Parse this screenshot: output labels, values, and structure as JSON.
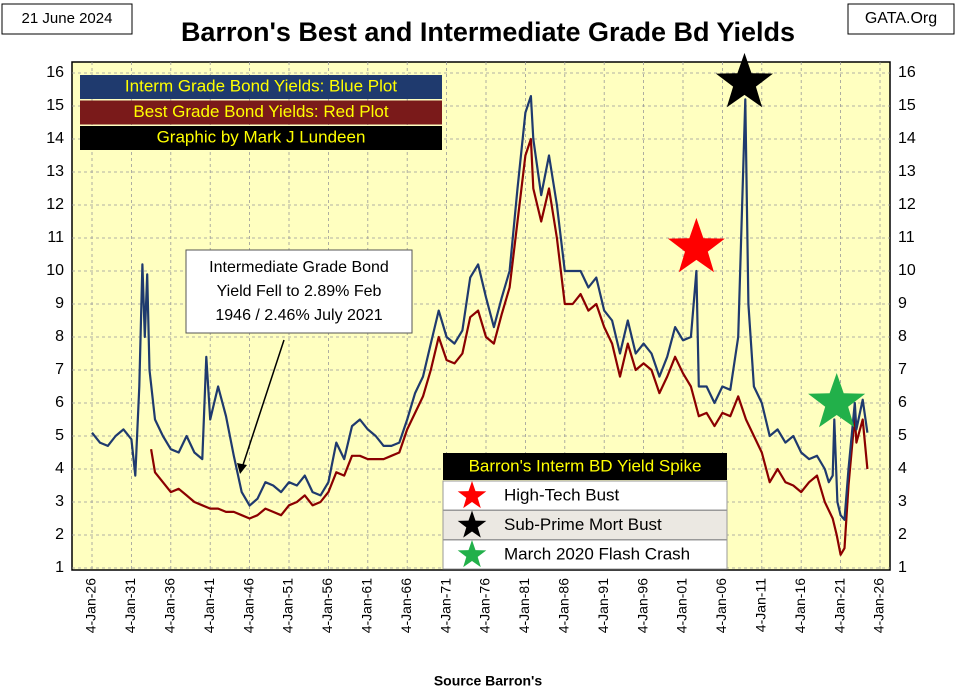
{
  "date_label": "21 June 2024",
  "site_label": "GATA.Org",
  "chart_data": {
    "type": "line",
    "title": "Barron's Best and Intermediate Grade Bd Yields",
    "credit": "Graphic by Mark J Lundeen",
    "source": "Source Barron's",
    "xlim": [
      1926,
      2026
    ],
    "xticks": [
      {
        "value": 1926,
        "label": "4-Jan-26"
      },
      {
        "value": 1931,
        "label": "4-Jan-31"
      },
      {
        "value": 1936,
        "label": "4-Jan-36"
      },
      {
        "value": 1941,
        "label": "4-Jan-41"
      },
      {
        "value": 1946,
        "label": "4-Jan-46"
      },
      {
        "value": 1951,
        "label": "4-Jan-51"
      },
      {
        "value": 1956,
        "label": "4-Jan-56"
      },
      {
        "value": 1961,
        "label": "4-Jan-61"
      },
      {
        "value": 1966,
        "label": "4-Jan-66"
      },
      {
        "value": 1971,
        "label": "4-Jan-71"
      },
      {
        "value": 1976,
        "label": "4-Jan-76"
      },
      {
        "value": 1981,
        "label": "4-Jan-81"
      },
      {
        "value": 1986,
        "label": "4-Jan-86"
      },
      {
        "value": 1991,
        "label": "4-Jan-91"
      },
      {
        "value": 1996,
        "label": "4-Jan-96"
      },
      {
        "value": 2001,
        "label": "4-Jan-01"
      },
      {
        "value": 2006,
        "label": "4-Jan-06"
      },
      {
        "value": 2011,
        "label": "4-Jan-11"
      },
      {
        "value": 2016,
        "label": "4-Jan-16"
      },
      {
        "value": 2021,
        "label": "4-Jan-21"
      },
      {
        "value": 2026,
        "label": "4-Jan-26"
      }
    ],
    "ylim": [
      1,
      16
    ],
    "yticks": [
      1,
      2,
      3,
      4,
      5,
      6,
      7,
      8,
      9,
      10,
      11,
      12,
      13,
      14,
      15,
      16
    ],
    "grid": true,
    "series": [
      {
        "name": "Interm Grade Bond Yields: Blue Plot",
        "color": "#1f3a6e",
        "legend_bg": "#1f3a6e",
        "x": [
          1926,
          1927,
          1928,
          1929,
          1930,
          1931,
          1931.5,
          1932,
          1932.4,
          1932.7,
          1933,
          1933.3,
          1934,
          1935,
          1936,
          1937,
          1938,
          1939,
          1940,
          1940.5,
          1941,
          1942,
          1943,
          1944,
          1945,
          1946,
          1947,
          1948,
          1949,
          1950,
          1951,
          1952,
          1953,
          1954,
          1955,
          1956,
          1957,
          1958,
          1959,
          1960,
          1961,
          1962,
          1963,
          1964,
          1965,
          1966,
          1967,
          1968,
          1969,
          1970,
          1971,
          1972,
          1973,
          1974,
          1975,
          1976,
          1977,
          1978,
          1979,
          1980,
          1981,
          1981.7,
          1982,
          1983,
          1984,
          1985,
          1986,
          1987,
          1988,
          1989,
          1990,
          1991,
          1992,
          1993,
          1994,
          1995,
          1996,
          1997,
          1998,
          1999,
          2000,
          2001,
          2002,
          2002.7,
          2003,
          2004,
          2005,
          2006,
          2007,
          2008,
          2008.9,
          2009.3,
          2010,
          2011,
          2012,
          2013,
          2014,
          2015,
          2016,
          2017,
          2018,
          2019,
          2019.5,
          2020,
          2020.2,
          2020.6,
          2021,
          2021.5,
          2022,
          2022.8,
          2023,
          2023.8,
          2024.4
        ],
        "values": [
          5.1,
          4.8,
          4.7,
          5.0,
          5.2,
          4.9,
          3.8,
          6.5,
          10.2,
          8,
          9.9,
          7,
          5.5,
          5.0,
          4.6,
          4.5,
          5.0,
          4.5,
          4.3,
          7.4,
          5.5,
          6.5,
          5.6,
          4.4,
          3.3,
          2.89,
          3.1,
          3.6,
          3.5,
          3.3,
          3.6,
          3.5,
          3.8,
          3.3,
          3.2,
          3.6,
          4.8,
          4.3,
          5.3,
          5.5,
          5.2,
          5.0,
          4.7,
          4.7,
          4.8,
          5.5,
          6.3,
          6.8,
          7.8,
          8.8,
          8.0,
          7.8,
          8.2,
          9.8,
          10.2,
          9.2,
          8.3,
          9.2,
          10.0,
          12.5,
          14.8,
          15.3,
          14.0,
          12.3,
          13.5,
          12.0,
          10.0,
          10.0,
          10.0,
          9.5,
          9.8,
          8.8,
          8.5,
          7.5,
          8.5,
          7.5,
          7.8,
          7.5,
          6.8,
          7.4,
          8.3,
          7.9,
          8.0,
          10.0,
          6.5,
          6.5,
          6.0,
          6.5,
          6.4,
          8.0,
          15.2,
          9.0,
          6.5,
          6.0,
          5.0,
          5.2,
          4.8,
          5.0,
          4.5,
          4.3,
          4.4,
          4.0,
          3.6,
          3.8,
          5.5,
          3.0,
          2.6,
          2.46,
          4.0,
          6.0,
          5.2,
          6.1,
          5.1
        ]
      },
      {
        "name": "Best Grade Bond Yields: Red Plot",
        "color": "#8b0000",
        "legend_bg": "#7a1a1a",
        "x": [
          1933.5,
          1934,
          1935,
          1936,
          1937,
          1938,
          1939,
          1940,
          1941,
          1942,
          1943,
          1944,
          1945,
          1946,
          1947,
          1948,
          1949,
          1950,
          1951,
          1952,
          1953,
          1954,
          1955,
          1956,
          1957,
          1958,
          1959,
          1960,
          1961,
          1962,
          1963,
          1964,
          1965,
          1966,
          1967,
          1968,
          1969,
          1970,
          1971,
          1972,
          1973,
          1974,
          1975,
          1976,
          1977,
          1978,
          1979,
          1980,
          1981,
          1981.7,
          1982,
          1983,
          1984,
          1985,
          1986,
          1987,
          1988,
          1989,
          1990,
          1991,
          1992,
          1993,
          1994,
          1995,
          1996,
          1997,
          1998,
          1999,
          2000,
          2001,
          2002,
          2003,
          2004,
          2005,
          2006,
          2007,
          2008,
          2009,
          2010,
          2011,
          2012,
          2013,
          2014,
          2015,
          2016,
          2017,
          2018,
          2019,
          2020,
          2020.5,
          2021,
          2021.5,
          2022,
          2022.8,
          2023,
          2023.8,
          2024.4
        ],
        "values": [
          4.6,
          3.9,
          3.6,
          3.3,
          3.4,
          3.2,
          3.0,
          2.9,
          2.8,
          2.8,
          2.7,
          2.7,
          2.6,
          2.5,
          2.6,
          2.8,
          2.7,
          2.6,
          2.9,
          3.0,
          3.2,
          2.9,
          3.0,
          3.3,
          3.9,
          3.8,
          4.4,
          4.4,
          4.3,
          4.3,
          4.3,
          4.4,
          4.5,
          5.2,
          5.7,
          6.2,
          7.0,
          8.0,
          7.3,
          7.2,
          7.5,
          8.6,
          8.8,
          8.0,
          7.8,
          8.7,
          9.5,
          11.5,
          13.5,
          14.0,
          12.5,
          11.5,
          12.5,
          11.0,
          9.0,
          9.0,
          9.3,
          8.8,
          9.0,
          8.3,
          7.8,
          6.8,
          7.8,
          7.0,
          7.2,
          7.0,
          6.3,
          6.8,
          7.4,
          6.9,
          6.5,
          5.6,
          5.7,
          5.3,
          5.7,
          5.6,
          6.2,
          5.5,
          5.0,
          4.5,
          3.6,
          4.0,
          3.6,
          3.5,
          3.3,
          3.6,
          3.8,
          3.0,
          2.5,
          2.0,
          1.4,
          1.6,
          3.5,
          5.6,
          4.8,
          5.5,
          4.0
        ]
      }
    ],
    "annotation": [
      "Intermediate Grade Bond",
      "Yield Fell to 2.89% Feb",
      "1946 / 2.46%  July 2021"
    ],
    "spike_legend": {
      "title": "Barron's Interm BD Yield Spike",
      "items": [
        {
          "label": "High-Tech Bust",
          "color": "#ff0000",
          "x": 2002.7,
          "y": 10.7
        },
        {
          "label": "Sub-Prime Mort Bust",
          "color": "#000000",
          "x": 2008.8,
          "y": 15.7
        },
        {
          "label": "March 2020 Flash Crash",
          "color": "#22b04a",
          "x": 2020.5,
          "y": 6.0
        }
      ]
    }
  }
}
